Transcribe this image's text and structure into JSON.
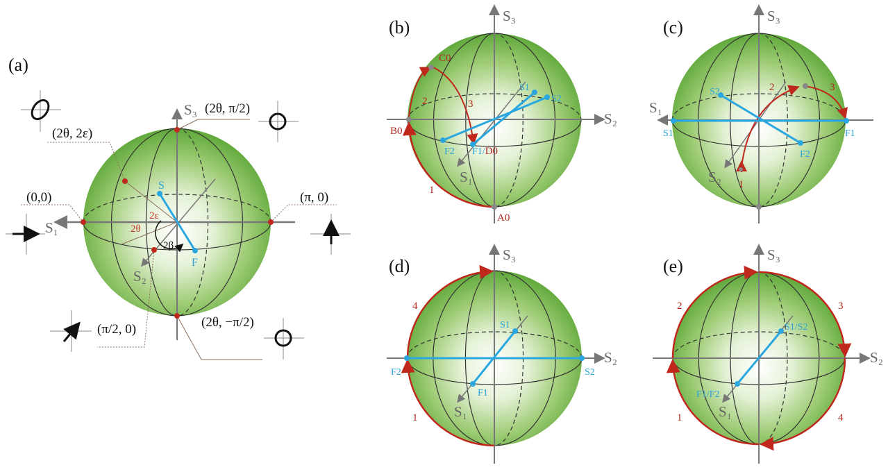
{
  "colors": {
    "sphere_edge": "#5fa83a",
    "sphere_center": "#ffffff",
    "vector": "#2aa7df",
    "path": "#c0281e",
    "axis": "#777777"
  },
  "panels": {
    "a": {
      "label": "(a)",
      "axes": {
        "s1": "S₁",
        "s2": "S₂",
        "s3": "S₃"
      },
      "points": {
        "s": "S",
        "f": "F"
      },
      "angles": {
        "e": "2ε",
        "t": "2θ",
        "b": "2β"
      },
      "coords": {
        "north": "(2θ, π/2)",
        "general": "(2θ, 2ε)",
        "h": "(0,0)",
        "v": "(π, 0)",
        "d": "(π/2, 0)",
        "south": "(2θ, −π/2)"
      },
      "icons": [
        "elliptical-polarization-icon",
        "right-circular-polarization-icon",
        "horizontal-polarization-icon",
        "vertical-polarization-icon",
        "diagonal-polarization-icon",
        "left-circular-polarization-icon"
      ]
    },
    "b": {
      "label": "(b)",
      "axes": {
        "s1": "S₁",
        "s2": "S₂",
        "s3": "S₃"
      },
      "points": {
        "s1": "S1",
        "s2": "S2",
        "f2": "F2",
        "f1": "F1",
        "slash": "/",
        "d0": "D0"
      },
      "states": {
        "a0": "A0",
        "b0": "B0",
        "c0": "C0"
      },
      "paths": [
        "1",
        "2",
        "3"
      ]
    },
    "c": {
      "label": "(c)",
      "axes": {
        "s1": "S₁",
        "s2": "S₂",
        "s3": "S₃"
      },
      "points": {
        "s1": "S1",
        "s2": "S2",
        "f1": "F1",
        "f2": "F2"
      },
      "paths": [
        "1",
        "2",
        "3"
      ]
    },
    "d": {
      "label": "(d)",
      "axes": {
        "s1": "S₁",
        "s2": "S₂",
        "s3": "S₃"
      },
      "points": {
        "s1": "S1",
        "s2": "S2",
        "f1": "F1",
        "f2": "F2"
      },
      "paths": [
        "1",
        "4"
      ]
    },
    "e": {
      "label": "(e)",
      "axes": {
        "s1": "S₁",
        "s2": "S₂",
        "s3": "S₃"
      },
      "points": {
        "s12": "S1/S2",
        "f12": "F1/F2"
      },
      "paths": [
        "1",
        "2",
        "3",
        "4"
      ]
    }
  }
}
